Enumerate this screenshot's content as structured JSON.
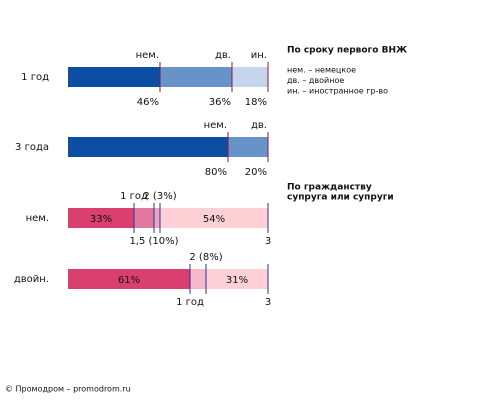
{
  "chart_data": {
    "type": "stacked-hbar",
    "xlim": [
      0,
      100
    ],
    "groups": [
      {
        "title": [
          "По сроку первого ВНЖ"
        ],
        "legend": [
          "нем. – немецкое",
          "дв. – двойное",
          "ин. – иностранное гр-во"
        ],
        "tick_color": "#8b1a3a",
        "rows": [
          {
            "label": "1 год",
            "segments": [
              {
                "name": "нем.",
                "value": 46,
                "value_label": "46%",
                "color": "#0b4ea2"
              },
              {
                "name": "дв.",
                "value": 36,
                "value_label": "36%",
                "color": "#6793c8"
              },
              {
                "name": "ин.",
                "value": 18,
                "value_label": "18%",
                "color": "#c5d5ee"
              }
            ]
          },
          {
            "label": "3 года",
            "segments": [
              {
                "name": "нем.",
                "value": 80,
                "value_label": "80%",
                "color": "#0b4ea2"
              },
              {
                "name": "дв.",
                "value": 20,
                "value_label": "20%",
                "color": "#6793c8"
              }
            ]
          }
        ]
      },
      {
        "title": [
          "По гражданству",
          "супруга или супруги"
        ],
        "tick_color": "#2233a0",
        "rows": [
          {
            "label": "нем.",
            "segments": [
              {
                "name": "1 год",
                "value": 33,
                "value_label": "33%",
                "color": "#d9406f"
              },
              {
                "name": "1,5 (10%)",
                "value": 10,
                "color": "#e27aa0"
              },
              {
                "name": "2 (3%)",
                "value": 3,
                "color": "#eaa6bc"
              },
              {
                "name": "3",
                "value": 54,
                "value_label": "54%",
                "color": "#fcd0d4"
              }
            ]
          },
          {
            "label": "двойн.",
            "segments": [
              {
                "name": "1 год",
                "value": 61,
                "value_label": "61%",
                "color": "#d9406f"
              },
              {
                "name": "2 (8%)",
                "value": 8,
                "color": "#f6b8c6"
              },
              {
                "name": "3",
                "value": 31,
                "value_label": "31%",
                "color": "#fcd0d4"
              }
            ]
          }
        ]
      }
    ],
    "footer": "© Промодром – promodrom.ru"
  }
}
